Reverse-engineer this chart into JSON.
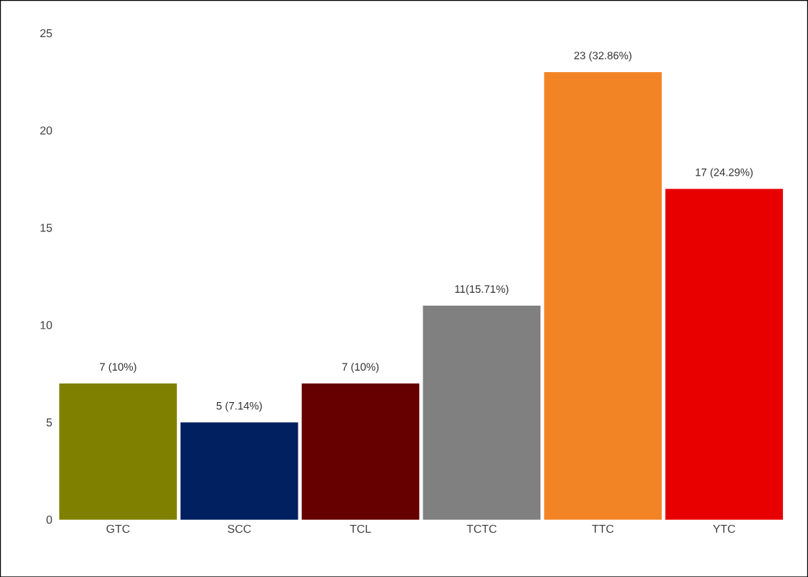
{
  "chart_data": {
    "type": "bar",
    "categories": [
      "GTC",
      "SCC",
      "TCL",
      "TCTC",
      "TTC",
      "YTC"
    ],
    "values": [
      7,
      5,
      7,
      11,
      23,
      17
    ],
    "colors": [
      "#808000",
      "#002060",
      "#660000",
      "#808080",
      "#f38426",
      "#e80000"
    ],
    "value_labels": [
      "7 (10%)",
      "5 (7.14%)",
      "7 (10%)",
      "11(15.71%)",
      "23 (32.86%)",
      "17 (24.29%)"
    ],
    "ylim": [
      0,
      25
    ],
    "yticks": [
      0,
      5,
      10,
      15,
      20,
      25
    ]
  }
}
